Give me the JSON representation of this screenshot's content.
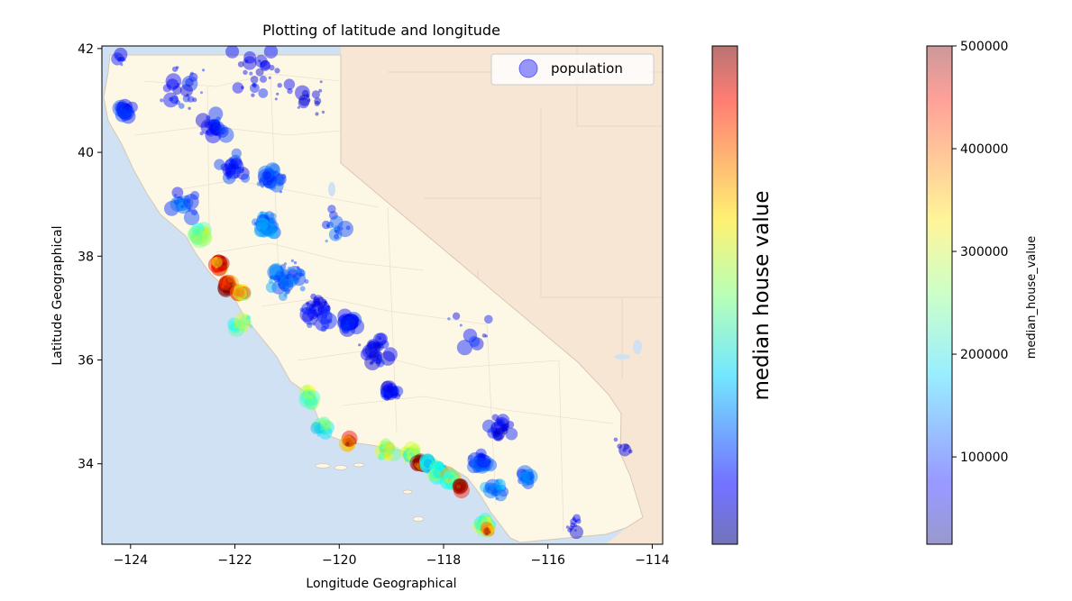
{
  "chart_data": {
    "type": "scatter",
    "title": "Plotting of latitude and longitude",
    "xlabel": "Longitude Geographical",
    "ylabel": "Latitude Geographical",
    "xlim": [
      -124.55,
      -113.8
    ],
    "ylim": [
      32.45,
      42.05
    ],
    "xticks": [
      -124,
      -122,
      -120,
      -118,
      -116,
      -114
    ],
    "xtick_labels": [
      "−124",
      "−122",
      "−120",
      "−118",
      "−116",
      "−114"
    ],
    "yticks": [
      34,
      36,
      38,
      40,
      42
    ],
    "ytick_labels": [
      "34",
      "36",
      "38",
      "40",
      "42"
    ],
    "grid": false,
    "legend": {
      "placement": "top-right",
      "entries": [
        "population"
      ]
    },
    "background": "map of California",
    "colormap": "jet",
    "size_encodes": "population",
    "color_encodes": "median house value",
    "colorbars": [
      {
        "label": "median house value",
        "range": [
          0,
          1
        ],
        "ticks": []
      },
      {
        "label": "median_house_value",
        "range": [
          14999,
          500001
        ],
        "ticks": [
          100000,
          200000,
          300000,
          400000,
          500000
        ],
        "tick_labels": [
          "100000",
          "200000",
          "300000",
          "400000",
          "500000"
        ]
      }
    ],
    "clusters": [
      {
        "x": -124.2,
        "y": 41.8,
        "spread": 0.15,
        "n": 10,
        "v": 80000
      },
      {
        "x": -124.1,
        "y": 40.8,
        "spread": 0.2,
        "n": 25,
        "v": 95000
      },
      {
        "x": -123.0,
        "y": 41.2,
        "spread": 0.6,
        "n": 25,
        "v": 80000
      },
      {
        "x": -121.6,
        "y": 41.5,
        "spread": 0.7,
        "n": 30,
        "v": 70000
      },
      {
        "x": -120.5,
        "y": 41.1,
        "spread": 0.5,
        "n": 15,
        "v": 65000
      },
      {
        "x": -122.4,
        "y": 40.5,
        "spread": 0.3,
        "n": 30,
        "v": 90000
      },
      {
        "x": -122.0,
        "y": 39.7,
        "spread": 0.35,
        "n": 35,
        "v": 85000
      },
      {
        "x": -121.3,
        "y": 39.5,
        "spread": 0.35,
        "n": 35,
        "v": 110000
      },
      {
        "x": -121.4,
        "y": 38.6,
        "spread": 0.3,
        "n": 55,
        "v": 140000
      },
      {
        "x": -123.0,
        "y": 39.0,
        "spread": 0.35,
        "n": 20,
        "v": 110000
      },
      {
        "x": -122.7,
        "y": 38.4,
        "spread": 0.2,
        "n": 40,
        "v": 260000
      },
      {
        "x": -122.3,
        "y": 37.85,
        "spread": 0.15,
        "n": 60,
        "v": 420000
      },
      {
        "x": -122.15,
        "y": 37.45,
        "spread": 0.15,
        "n": 55,
        "v": 480000
      },
      {
        "x": -121.9,
        "y": 37.3,
        "spread": 0.15,
        "n": 40,
        "v": 330000
      },
      {
        "x": -121.85,
        "y": 36.7,
        "spread": 0.2,
        "n": 20,
        "v": 280000
      },
      {
        "x": -121.0,
        "y": 37.6,
        "spread": 0.45,
        "n": 55,
        "v": 130000
      },
      {
        "x": -120.4,
        "y": 36.9,
        "spread": 0.45,
        "n": 45,
        "v": 75000
      },
      {
        "x": -119.8,
        "y": 36.7,
        "spread": 0.2,
        "n": 45,
        "v": 85000
      },
      {
        "x": -119.3,
        "y": 36.2,
        "spread": 0.35,
        "n": 40,
        "v": 70000
      },
      {
        "x": -119.0,
        "y": 35.4,
        "spread": 0.2,
        "n": 30,
        "v": 80000
      },
      {
        "x": -120.6,
        "y": 35.3,
        "spread": 0.2,
        "n": 25,
        "v": 250000
      },
      {
        "x": -120.3,
        "y": 34.7,
        "spread": 0.2,
        "n": 20,
        "v": 210000
      },
      {
        "x": -119.8,
        "y": 34.4,
        "spread": 0.15,
        "n": 25,
        "v": 450000
      },
      {
        "x": -119.1,
        "y": 34.25,
        "spread": 0.2,
        "n": 30,
        "v": 280000
      },
      {
        "x": -118.6,
        "y": 34.2,
        "spread": 0.2,
        "n": 40,
        "v": 250000
      },
      {
        "x": -118.45,
        "y": 34.02,
        "spread": 0.12,
        "n": 45,
        "v": 490000
      },
      {
        "x": -118.3,
        "y": 34.0,
        "spread": 0.12,
        "n": 65,
        "v": 180000
      },
      {
        "x": -118.1,
        "y": 33.85,
        "spread": 0.15,
        "n": 55,
        "v": 220000
      },
      {
        "x": -117.85,
        "y": 33.7,
        "spread": 0.15,
        "n": 50,
        "v": 280000
      },
      {
        "x": -117.7,
        "y": 33.55,
        "spread": 0.1,
        "n": 20,
        "v": 450000
      },
      {
        "x": -117.3,
        "y": 34.05,
        "spread": 0.25,
        "n": 40,
        "v": 110000
      },
      {
        "x": -117.2,
        "y": 32.85,
        "spread": 0.15,
        "n": 45,
        "v": 270000
      },
      {
        "x": -117.15,
        "y": 32.72,
        "spread": 0.1,
        "n": 20,
        "v": 380000
      },
      {
        "x": -117.0,
        "y": 33.5,
        "spread": 0.3,
        "n": 30,
        "v": 150000
      },
      {
        "x": -116.9,
        "y": 34.7,
        "spread": 0.4,
        "n": 25,
        "v": 70000
      },
      {
        "x": -116.4,
        "y": 33.75,
        "spread": 0.2,
        "n": 25,
        "v": 120000
      },
      {
        "x": -115.5,
        "y": 32.85,
        "spread": 0.2,
        "n": 12,
        "v": 70000
      },
      {
        "x": -114.6,
        "y": 34.3,
        "spread": 0.3,
        "n": 6,
        "v": 60000
      },
      {
        "x": -117.5,
        "y": 36.5,
        "spread": 0.7,
        "n": 10,
        "v": 80000
      },
      {
        "x": -120.1,
        "y": 38.6,
        "spread": 0.4,
        "n": 15,
        "v": 100000
      }
    ]
  }
}
